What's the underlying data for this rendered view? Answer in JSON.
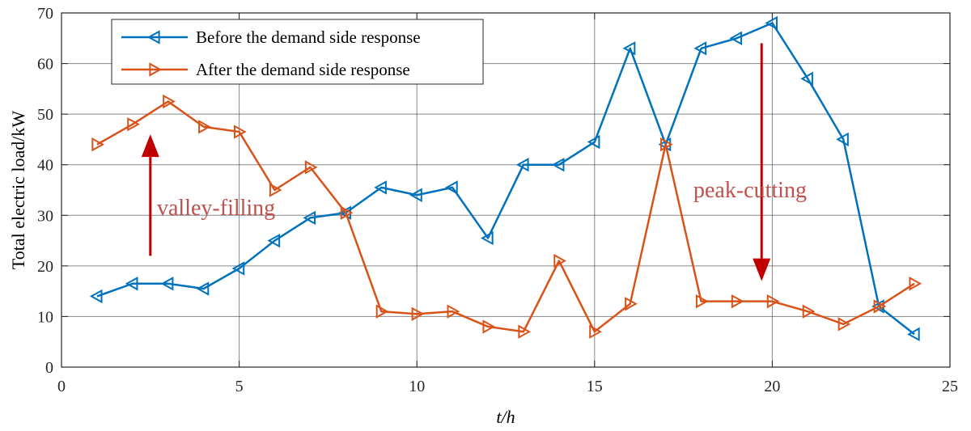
{
  "chart_data": {
    "type": "line",
    "title": "",
    "xlabel": "t/h",
    "ylabel": "Total electric load/kW",
    "xlim": [
      0,
      25
    ],
    "ylim": [
      0,
      70
    ],
    "x_ticks": [
      0,
      5,
      10,
      15,
      20,
      25
    ],
    "y_ticks": [
      0,
      10,
      20,
      30,
      40,
      50,
      60,
      70
    ],
    "grid": true,
    "legend_position": "top-left",
    "x": [
      1,
      2,
      3,
      4,
      5,
      6,
      7,
      8,
      9,
      10,
      11,
      12,
      13,
      14,
      15,
      16,
      17,
      18,
      19,
      20,
      21,
      22,
      23,
      24
    ],
    "series": [
      {
        "name": "Before the demand side response",
        "color": "#0072bd",
        "marker": "triangle-left",
        "values": [
          14,
          16.5,
          16.5,
          15.5,
          19.5,
          25,
          29.5,
          30.5,
          35.5,
          34,
          35.5,
          25.5,
          40,
          40,
          44.5,
          63,
          44,
          63,
          65,
          68,
          57,
          45,
          12,
          6.5
        ]
      },
      {
        "name": "After the demand side response",
        "color": "#d95319",
        "marker": "triangle-right",
        "values": [
          44,
          48,
          52.5,
          47.5,
          46.5,
          35,
          39.5,
          30.5,
          11,
          10.5,
          11,
          8,
          7,
          21,
          7,
          12.5,
          44,
          13,
          13,
          13,
          11,
          8.5,
          12,
          16.5
        ]
      }
    ],
    "annotations": [
      {
        "text": "valley-filling",
        "color": "#c0504d",
        "arrow": "up",
        "arrow_color": "#c00000",
        "arrow_x": 2.5,
        "arrow_from": 22,
        "arrow_to": 46
      },
      {
        "text": "peak-cutting",
        "color": "#c0504d",
        "arrow": "down",
        "arrow_color": "#c00000",
        "arrow_x": 19.7,
        "arrow_from": 64,
        "arrow_to": 17
      }
    ]
  }
}
